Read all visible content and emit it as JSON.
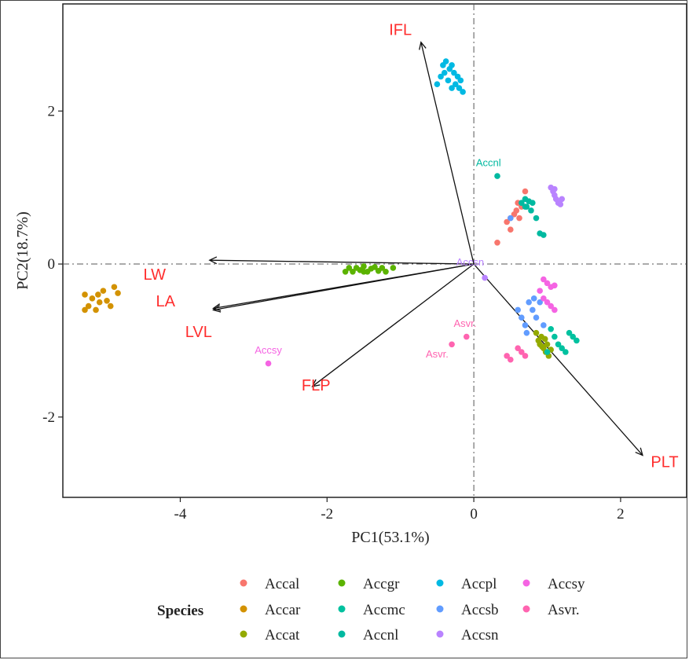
{
  "chart_data": {
    "type": "scatter",
    "subtype": "pca-biplot",
    "title": "",
    "xlabel": "PC1(53.1%)",
    "ylabel": "PC2(18.7%)",
    "xlim": [
      -5.6,
      2.9
    ],
    "ylim": [
      -3.05,
      3.4
    ],
    "x_ticks": [
      -4,
      -2,
      0,
      2
    ],
    "y_ticks": [
      -2,
      0,
      2
    ],
    "reference_lines": {
      "x": 0,
      "y": 0,
      "style": "dashed"
    },
    "grid": false,
    "legend": {
      "title": "Species",
      "placement": "bottom"
    },
    "series": [
      {
        "name": "Accal",
        "color": "#f8766d",
        "points": [
          [
            0.32,
            0.28
          ],
          [
            0.45,
            0.55
          ],
          [
            0.5,
            0.45
          ],
          [
            0.55,
            0.65
          ],
          [
            0.6,
            0.8
          ],
          [
            0.58,
            0.7
          ],
          [
            0.62,
            0.6
          ],
          [
            0.65,
            0.75
          ],
          [
            0.7,
            0.95
          ],
          [
            0.5,
            0.6
          ]
        ]
      },
      {
        "name": "Accar",
        "color": "#d39200",
        "points": [
          [
            -5.3,
            -0.4
          ],
          [
            -5.25,
            -0.55
          ],
          [
            -5.2,
            -0.45
          ],
          [
            -5.15,
            -0.6
          ],
          [
            -5.1,
            -0.5
          ],
          [
            -5.05,
            -0.35
          ],
          [
            -5.0,
            -0.48
          ],
          [
            -4.95,
            -0.55
          ],
          [
            -4.9,
            -0.3
          ],
          [
            -4.85,
            -0.38
          ],
          [
            -5.3,
            -0.6
          ],
          [
            -5.12,
            -0.4
          ]
        ]
      },
      {
        "name": "Accat",
        "color": "#93aa00",
        "points": [
          [
            0.85,
            -0.9
          ],
          [
            0.88,
            -1.0
          ],
          [
            0.9,
            -1.05
          ],
          [
            0.92,
            -0.95
          ],
          [
            0.95,
            -1.1
          ],
          [
            0.98,
            -1.15
          ],
          [
            1.0,
            -1.05
          ],
          [
            1.02,
            -1.2
          ],
          [
            0.93,
            -1.08
          ],
          [
            0.97,
            -0.98
          ],
          [
            1.05,
            -1.12
          ]
        ]
      },
      {
        "name": "Accgr",
        "color": "#5bb300",
        "points": [
          [
            -1.75,
            -0.1
          ],
          [
            -1.7,
            -0.05
          ],
          [
            -1.65,
            -0.1
          ],
          [
            -1.6,
            -0.05
          ],
          [
            -1.55,
            -0.08
          ],
          [
            -1.5,
            -0.03
          ],
          [
            -1.45,
            -0.1
          ],
          [
            -1.4,
            -0.06
          ],
          [
            -1.35,
            -0.04
          ],
          [
            -1.3,
            -0.09
          ],
          [
            -1.25,
            -0.05
          ],
          [
            -1.2,
            -0.1
          ],
          [
            -1.1,
            -0.05
          ],
          [
            -1.5,
            -0.1
          ]
        ]
      },
      {
        "name": "Accmc",
        "color": "#00c19f",
        "points": [
          [
            1.1,
            -0.95
          ],
          [
            1.15,
            -1.05
          ],
          [
            1.2,
            -1.1
          ],
          [
            1.3,
            -0.9
          ],
          [
            1.35,
            -0.95
          ],
          [
            1.4,
            -1.0
          ],
          [
            1.25,
            -1.15
          ],
          [
            1.05,
            -0.85
          ],
          [
            1.0,
            -1.15
          ]
        ]
      },
      {
        "name": "Accnl",
        "color": "#00b9a0",
        "points": [
          [
            0.32,
            1.15
          ],
          [
            0.65,
            0.8
          ],
          [
            0.7,
            0.85
          ],
          [
            0.72,
            0.75
          ],
          [
            0.75,
            0.82
          ],
          [
            0.78,
            0.7
          ],
          [
            0.8,
            0.8
          ],
          [
            0.85,
            0.6
          ],
          [
            0.9,
            0.4
          ],
          [
            0.95,
            0.38
          ],
          [
            0.7,
            0.75
          ]
        ]
      },
      {
        "name": "Accpl",
        "color": "#00b9e3",
        "points": [
          [
            -0.5,
            2.35
          ],
          [
            -0.45,
            2.45
          ],
          [
            -0.42,
            2.6
          ],
          [
            -0.4,
            2.5
          ],
          [
            -0.38,
            2.65
          ],
          [
            -0.35,
            2.4
          ],
          [
            -0.33,
            2.55
          ],
          [
            -0.3,
            2.3
          ],
          [
            -0.27,
            2.5
          ],
          [
            -0.25,
            2.35
          ],
          [
            -0.22,
            2.45
          ],
          [
            -0.2,
            2.3
          ],
          [
            -0.18,
            2.4
          ],
          [
            -0.15,
            2.25
          ],
          [
            -0.3,
            2.6
          ]
        ]
      },
      {
        "name": "Accsb",
        "color": "#619cff",
        "points": [
          [
            0.5,
            0.6
          ],
          [
            0.6,
            -0.6
          ],
          [
            0.65,
            -0.7
          ],
          [
            0.7,
            -0.8
          ],
          [
            0.75,
            -0.5
          ],
          [
            0.8,
            -0.6
          ],
          [
            0.85,
            -0.7
          ],
          [
            0.9,
            -0.5
          ],
          [
            0.72,
            -0.9
          ],
          [
            0.95,
            -0.8
          ],
          [
            0.82,
            -0.45
          ]
        ]
      },
      {
        "name": "Accsn",
        "color": "#b983ff",
        "points": [
          [
            1.05,
            1.0
          ],
          [
            1.08,
            0.95
          ],
          [
            1.1,
            0.9
          ],
          [
            1.12,
            0.85
          ],
          [
            1.15,
            0.8
          ],
          [
            1.18,
            0.78
          ],
          [
            1.1,
            0.98
          ],
          [
            1.2,
            0.85
          ],
          [
            0.15,
            -0.18
          ]
        ]
      },
      {
        "name": "Accsy",
        "color": "#f564e3",
        "points": [
          [
            -2.8,
            -1.3
          ],
          [
            0.95,
            -0.2
          ],
          [
            1.0,
            -0.25
          ],
          [
            1.05,
            -0.3
          ],
          [
            1.1,
            -0.28
          ],
          [
            0.9,
            -0.35
          ],
          [
            0.95,
            -0.45
          ],
          [
            1.0,
            -0.5
          ],
          [
            1.05,
            -0.55
          ],
          [
            1.1,
            -0.6
          ]
        ]
      },
      {
        "name": "Asvr.",
        "color": "#ff64b0",
        "points": [
          [
            -0.3,
            -1.05
          ],
          [
            -0.1,
            -0.95
          ],
          [
            0.45,
            -1.2
          ],
          [
            0.5,
            -1.25
          ],
          [
            0.6,
            -1.1
          ],
          [
            0.65,
            -1.15
          ],
          [
            0.7,
            -1.2
          ]
        ]
      }
    ],
    "loadings": [
      {
        "label": "IFL",
        "x": -0.72,
        "y": 2.9,
        "label_x": -1.0,
        "label_y": 3.05
      },
      {
        "label": "LW",
        "x": -3.6,
        "y": 0.05,
        "label_x": -4.35,
        "label_y": -0.15
      },
      {
        "label": "LA",
        "x": -3.55,
        "y": -0.6,
        "label_x": -4.2,
        "label_y": -0.5
      },
      {
        "label": "LVL",
        "x": -3.55,
        "y": -0.58,
        "label_x": -3.75,
        "label_y": -0.9
      },
      {
        "label": "FLP",
        "x": -2.2,
        "y": -1.6,
        "label_x": -2.15,
        "label_y": -1.6
      },
      {
        "label": "PLT",
        "x": 2.3,
        "y": -2.5,
        "label_x": 2.6,
        "label_y": -2.6
      }
    ],
    "loading_color": "#ff2d2d",
    "point_labels": [
      {
        "text": "Accnl",
        "x": 0.2,
        "y": 1.28,
        "color": "#00b9a0"
      },
      {
        "text": "Accsn",
        "x": -0.05,
        "y": -0.02,
        "color": "#b983ff"
      },
      {
        "text": "Asvr.",
        "x": -0.12,
        "y": -0.82,
        "color": "#ff64b0"
      },
      {
        "text": "Asvr.",
        "x": -0.5,
        "y": -1.22,
        "color": "#ff64b0"
      },
      {
        "text": "Accsy",
        "x": -2.8,
        "y": -1.17,
        "color": "#f564e3"
      }
    ]
  }
}
